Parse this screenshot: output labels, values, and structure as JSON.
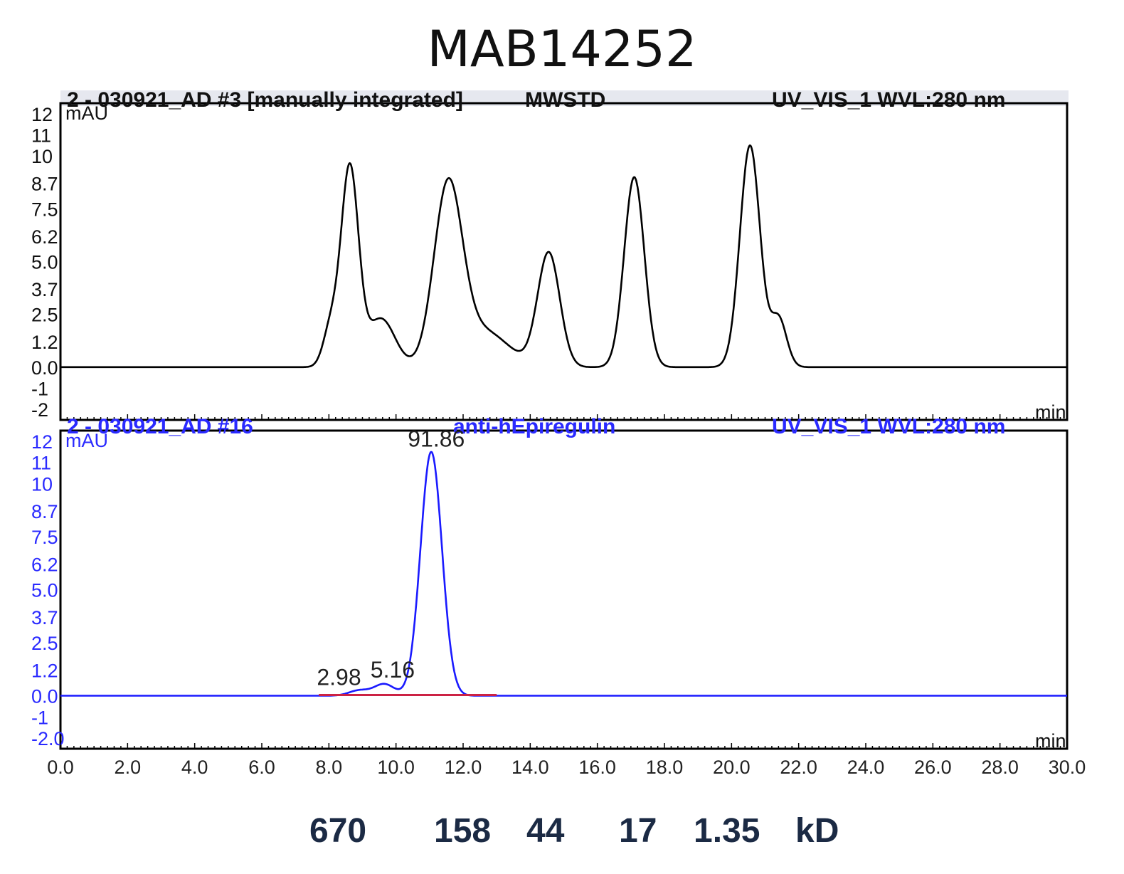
{
  "title": "MAB14252",
  "colors": {
    "top_trace": "#000000",
    "bottom_trace": "#1a1aff",
    "bottom_text": "#2a2aff",
    "baseline_marker": "#cc2244",
    "mw_labels": "#1b2a44"
  },
  "chart_data": [
    {
      "type": "line",
      "panel": "top",
      "header": {
        "left": "2 - 030921_AD #3 [manually integrated]",
        "middle": "MWSTD",
        "right": "UV_VIS_1 WVL:280 nm"
      },
      "ylabel": "mAU",
      "xlabel": "min",
      "ytick_labels": [
        "-2",
        "-1",
        "0.0",
        "1.2",
        "2.5",
        "3.7",
        "5.0",
        "6.2",
        "7.5",
        "8.7",
        "10",
        "11",
        "12"
      ],
      "ylim": [
        -2.5,
        12.5
      ],
      "xlim": [
        0,
        30
      ],
      "baseline": 0.0,
      "peaks": [
        {
          "rt": 8.05,
          "height": 1.8,
          "width": 0.22
        },
        {
          "rt": 8.62,
          "height": 9.4,
          "width": 0.26
        },
        {
          "rt": 9.55,
          "height": 2.3,
          "width": 0.42
        },
        {
          "rt": 11.55,
          "height": 8.3,
          "width": 0.42
        },
        {
          "rt": 12.6,
          "height": 1.7,
          "width": 0.75
        },
        {
          "rt": 14.55,
          "height": 5.4,
          "width": 0.33
        },
        {
          "rt": 17.1,
          "height": 9.0,
          "width": 0.3
        },
        {
          "rt": 20.55,
          "height": 10.5,
          "width": 0.3
        },
        {
          "rt": 21.4,
          "height": 2.3,
          "width": 0.24
        }
      ]
    },
    {
      "type": "line",
      "panel": "bottom",
      "header": {
        "left": "2 - 030921_AD #16",
        "middle": "anti-hEpiregulin",
        "right": "UV_VIS_1 WVL:280 nm"
      },
      "ylabel": "mAU",
      "xlabel": "min",
      "ytick_labels": [
        "-2.0",
        "-1",
        "0.0",
        "1.2",
        "2.5",
        "3.7",
        "5.0",
        "6.2",
        "7.5",
        "8.7",
        "10",
        "11",
        "12"
      ],
      "xtick_labels": [
        "0.0",
        "2.0",
        "4.0",
        "6.0",
        "8.0",
        "10.0",
        "12.0",
        "14.0",
        "16.0",
        "18.0",
        "20.0",
        "22.0",
        "24.0",
        "26.0",
        "28.0",
        "30.0"
      ],
      "ylim": [
        -2.5,
        12.5
      ],
      "xlim": [
        0,
        30
      ],
      "baseline": 0.0,
      "peaks": [
        {
          "rt": 8.9,
          "height": 0.25,
          "width": 0.3
        },
        {
          "rt": 9.65,
          "height": 0.55,
          "width": 0.3
        },
        {
          "rt": 11.05,
          "height": 11.5,
          "width": 0.32
        }
      ],
      "peak_labels": [
        {
          "label": "2.98",
          "rt": 8.3,
          "value": 0.3
        },
        {
          "label": "5.16",
          "rt": 9.9,
          "value": 0.65
        },
        {
          "label": "91.86",
          "rt": 11.2,
          "value": 11.55
        }
      ],
      "integration_baseline": [
        7.7,
        13.0
      ]
    }
  ],
  "mw_labels": [
    "670",
    "158",
    "44",
    "17",
    "1.35",
    "kD"
  ]
}
